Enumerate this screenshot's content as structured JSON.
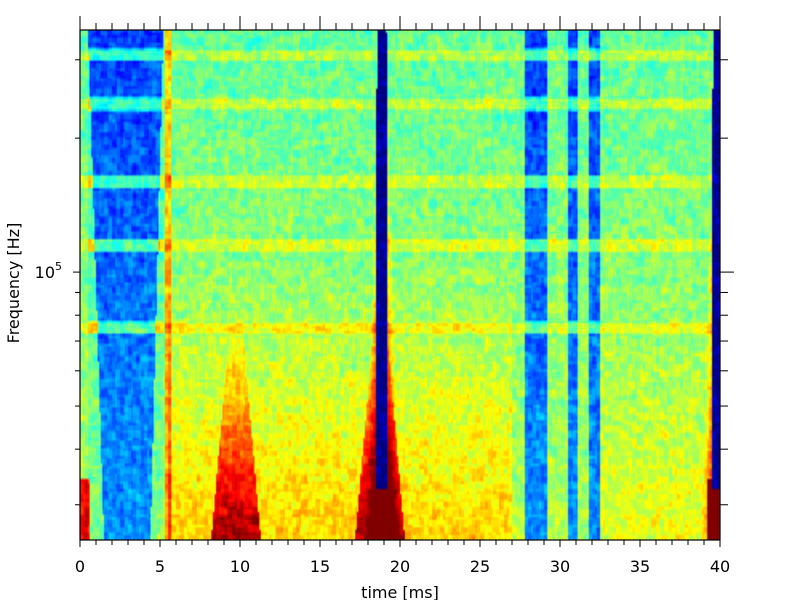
{
  "chart_data": {
    "type": "heatmap",
    "colormap": "jet",
    "title": "",
    "xlabel": "time [ms]",
    "ylabel": "Frequency [Hz]",
    "xlim": [
      0,
      40
    ],
    "ylim": [
      25000,
      350000
    ],
    "y_scale": "log",
    "x_ticks": [
      0,
      5,
      10,
      15,
      20,
      25,
      30,
      35,
      40
    ],
    "x_tick_labels": [
      "0",
      "5",
      "10",
      "15",
      "20",
      "25",
      "30",
      "35",
      "40"
    ],
    "x_minor_ticks": [
      1,
      2,
      3,
      4,
      6,
      7,
      8,
      9,
      11,
      12,
      13,
      14,
      16,
      17,
      18,
      19,
      21,
      22,
      23,
      24,
      26,
      27,
      28,
      29,
      31,
      32,
      33,
      34,
      36,
      37,
      38,
      39
    ],
    "y_major_ticks": [
      100000
    ],
    "y_tick_labels": [
      {
        "base": "10",
        "exp": "5"
      }
    ],
    "y_minor_ticks": [
      30000,
      40000,
      50000,
      60000,
      70000,
      80000,
      90000,
      200000,
      300000
    ],
    "grid": false,
    "features": {
      "spike_times_ms": [
        18.9,
        39.9
      ],
      "low_activity_intervals_ms": [
        [
          0.5,
          5.2
        ],
        [
          27.8,
          29.2
        ],
        [
          30.5,
          31.1
        ],
        [
          31.8,
          32.5
        ]
      ],
      "high_activity_intervals_ms": [
        [
          8.5,
          11.0
        ],
        [
          17.5,
          20.0
        ]
      ],
      "horizontal_band_frequencies_hz": [
        310000,
        240000,
        160000,
        115000,
        75000
      ],
      "time_step_ms": 0.1,
      "freq_bins": 200
    }
  }
}
